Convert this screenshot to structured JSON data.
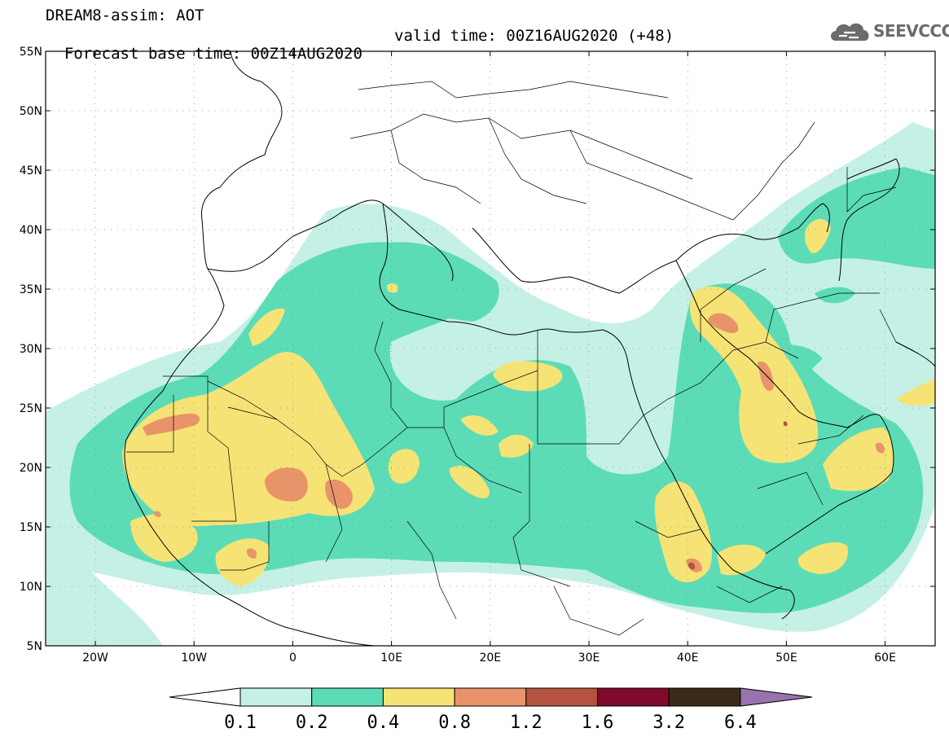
{
  "title": {
    "line1": "DREAM8-assim: AOT",
    "base_time": "Forecast base time: 00Z14AUG2020",
    "valid_time": "valid time: 00Z16AUG2020 (+48)"
  },
  "logo": {
    "text": "SEEVCCC",
    "icon": "cloud-icon"
  },
  "axes": {
    "lat_labels": [
      "55N",
      "50N",
      "45N",
      "40N",
      "35N",
      "30N",
      "25N",
      "20N",
      "15N",
      "10N",
      "5N"
    ],
    "lon_labels": [
      "20W",
      "10W",
      "0",
      "10E",
      "20E",
      "30E",
      "40E",
      "50E",
      "60E"
    ]
  },
  "colorbar": {
    "labels": [
      "0.1",
      "0.2",
      "0.4",
      "0.8",
      "1.2",
      "1.6",
      "3.2",
      "6.4"
    ],
    "colors": [
      "#ffffff",
      "#c5f0e6",
      "#5bdcb6",
      "#f5e376",
      "#e8936a",
      "#b4533f",
      "#7e0a2c",
      "#3b2a17",
      "#9a73ac"
    ]
  },
  "colors": {
    "light": "#c5f0e6",
    "green": "#5bdcb6",
    "yellow": "#f5e376",
    "orange": "#e8936a",
    "red": "#b4533f"
  }
}
